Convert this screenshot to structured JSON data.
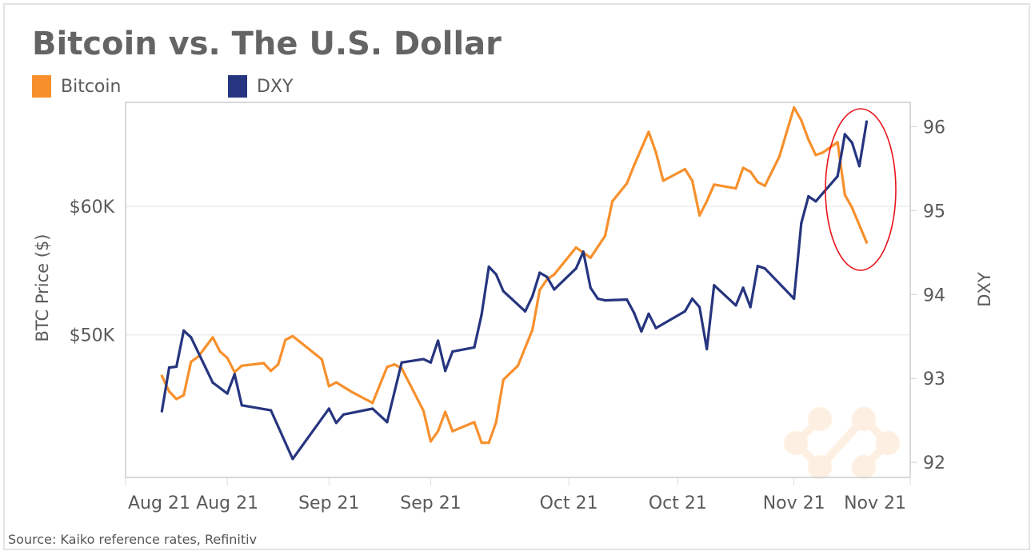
{
  "chart_data": {
    "type": "line",
    "title": "Bitcoin vs. The U.S. Dollar",
    "source": "Source: Kaiko reference rates, Refinitiv",
    "x_range": [
      "2021-08-02",
      "2021-11-18"
    ],
    "x_ticks": [
      {
        "label": "Aug 21",
        "date": "2021-08-02"
      },
      {
        "label": "Aug 21",
        "date": "2021-08-16"
      },
      {
        "label": "Sep 21",
        "date": "2021-08-30"
      },
      {
        "label": "Sep 21",
        "date": "2021-09-13"
      },
      {
        "label": "Oct 21",
        "date": "2021-10-02"
      },
      {
        "label": "Oct 21",
        "date": "2021-10-17"
      },
      {
        "label": "Nov 21",
        "date": "2021-11-02"
      },
      {
        "label": "Nov 21",
        "date": "2021-11-18"
      }
    ],
    "y_left": {
      "label": "BTC Price ($)",
      "ticks": [
        {
          "value": 50000,
          "label": "$50K"
        },
        {
          "value": 60000,
          "label": "$60K"
        }
      ],
      "range": [
        38900,
        68100
      ]
    },
    "y_right": {
      "label": "DXY",
      "ticks": [
        {
          "value": 92,
          "label": "92"
        },
        {
          "value": 93,
          "label": "93"
        },
        {
          "value": 94,
          "label": "94"
        },
        {
          "value": 95,
          "label": "95"
        },
        {
          "value": 96,
          "label": "96"
        }
      ],
      "range": [
        91.82,
        96.29
      ]
    },
    "grid": true,
    "legend_position": "top-left",
    "highlight": {
      "shape": "red oval",
      "color": "#e8141c",
      "date_range": [
        "2021-11-05",
        "2021-11-14"
      ]
    },
    "series": [
      {
        "name": "Bitcoin",
        "axis": "left",
        "color": "#f7902c",
        "points": [
          [
            "2021-08-07",
            46800
          ],
          [
            "2021-08-08",
            45600
          ],
          [
            "2021-08-09",
            45000
          ],
          [
            "2021-08-10",
            45300
          ],
          [
            "2021-08-11",
            47900
          ],
          [
            "2021-08-12",
            48300
          ],
          [
            "2021-08-14",
            49800
          ],
          [
            "2021-08-15",
            48700
          ],
          [
            "2021-08-16",
            48200
          ],
          [
            "2021-08-17",
            47100
          ],
          [
            "2021-08-18",
            47600
          ],
          [
            "2021-08-21",
            47800
          ],
          [
            "2021-08-22",
            47200
          ],
          [
            "2021-08-23",
            47700
          ],
          [
            "2021-08-24",
            49600
          ],
          [
            "2021-08-25",
            49900
          ],
          [
            "2021-08-29",
            48100
          ],
          [
            "2021-08-30",
            46000
          ],
          [
            "2021-08-31",
            46300
          ],
          [
            "2021-09-02",
            45600
          ],
          [
            "2021-09-05",
            44700
          ],
          [
            "2021-09-07",
            47500
          ],
          [
            "2021-09-08",
            47700
          ],
          [
            "2021-09-09",
            47400
          ],
          [
            "2021-09-12",
            44100
          ],
          [
            "2021-09-13",
            41700
          ],
          [
            "2021-09-14",
            42500
          ],
          [
            "2021-09-15",
            44000
          ],
          [
            "2021-09-16",
            42500
          ],
          [
            "2021-09-19",
            43200
          ],
          [
            "2021-09-20",
            41600
          ],
          [
            "2021-09-21",
            41600
          ],
          [
            "2021-09-22",
            43200
          ],
          [
            "2021-09-23",
            46500
          ],
          [
            "2021-09-25",
            47600
          ],
          [
            "2021-09-27",
            50400
          ],
          [
            "2021-09-28",
            53500
          ],
          [
            "2021-09-29",
            54300
          ],
          [
            "2021-09-30",
            54700
          ],
          [
            "2021-10-03",
            56800
          ],
          [
            "2021-10-04",
            56400
          ],
          [
            "2021-10-05",
            56000
          ],
          [
            "2021-10-07",
            57700
          ],
          [
            "2021-10-08",
            60400
          ],
          [
            "2021-10-10",
            61800
          ],
          [
            "2021-10-11",
            63200
          ],
          [
            "2021-10-13",
            65800
          ],
          [
            "2021-10-14",
            64200
          ],
          [
            "2021-10-15",
            62000
          ],
          [
            "2021-10-18",
            62900
          ],
          [
            "2021-10-19",
            62000
          ],
          [
            "2021-10-20",
            59300
          ],
          [
            "2021-10-21",
            60400
          ],
          [
            "2021-10-22",
            61700
          ],
          [
            "2021-10-25",
            61400
          ],
          [
            "2021-10-26",
            63000
          ],
          [
            "2021-10-27",
            62700
          ],
          [
            "2021-10-28",
            61900
          ],
          [
            "2021-10-29",
            61600
          ],
          [
            "2021-10-31",
            63900
          ],
          [
            "2021-11-01",
            65800
          ],
          [
            "2021-11-02",
            67700
          ],
          [
            "2021-11-03",
            66700
          ],
          [
            "2021-11-04",
            65200
          ],
          [
            "2021-11-05",
            64000
          ],
          [
            "2021-11-06",
            64200
          ],
          [
            "2021-11-08",
            65000
          ],
          [
            "2021-11-09",
            60900
          ],
          [
            "2021-11-10",
            59900
          ],
          [
            "2021-11-12",
            57200
          ]
        ]
      },
      {
        "name": "DXY",
        "axis": "right",
        "color": "#26357f",
        "points": [
          [
            "2021-08-07",
            92.61
          ],
          [
            "2021-08-08",
            93.13
          ],
          [
            "2021-08-09",
            93.14
          ],
          [
            "2021-08-10",
            93.57
          ],
          [
            "2021-08-11",
            93.49
          ],
          [
            "2021-08-14",
            92.95
          ],
          [
            "2021-08-16",
            92.82
          ],
          [
            "2021-08-17",
            93.05
          ],
          [
            "2021-08-18",
            92.68
          ],
          [
            "2021-08-22",
            92.62
          ],
          [
            "2021-08-25",
            92.04
          ],
          [
            "2021-08-30",
            92.64
          ],
          [
            "2021-08-31",
            92.47
          ],
          [
            "2021-09-01",
            92.57
          ],
          [
            "2021-09-05",
            92.64
          ],
          [
            "2021-09-07",
            92.48
          ],
          [
            "2021-09-09",
            93.19
          ],
          [
            "2021-09-12",
            93.23
          ],
          [
            "2021-09-13",
            93.19
          ],
          [
            "2021-09-14",
            93.45
          ],
          [
            "2021-09-15",
            93.09
          ],
          [
            "2021-09-16",
            93.32
          ],
          [
            "2021-09-19",
            93.37
          ],
          [
            "2021-09-20",
            93.76
          ],
          [
            "2021-09-21",
            94.33
          ],
          [
            "2021-09-22",
            94.24
          ],
          [
            "2021-09-23",
            94.04
          ],
          [
            "2021-09-26",
            93.8
          ],
          [
            "2021-09-27",
            93.98
          ],
          [
            "2021-09-28",
            94.26
          ],
          [
            "2021-09-29",
            94.21
          ],
          [
            "2021-09-30",
            94.06
          ],
          [
            "2021-10-03",
            94.31
          ],
          [
            "2021-10-04",
            94.51
          ],
          [
            "2021-10-05",
            94.08
          ],
          [
            "2021-10-06",
            93.95
          ],
          [
            "2021-10-07",
            93.93
          ],
          [
            "2021-10-10",
            93.94
          ],
          [
            "2021-10-11",
            93.78
          ],
          [
            "2021-10-12",
            93.56
          ],
          [
            "2021-10-13",
            93.77
          ],
          [
            "2021-10-14",
            93.6
          ],
          [
            "2021-10-18",
            93.8
          ],
          [
            "2021-10-19",
            93.95
          ],
          [
            "2021-10-20",
            93.85
          ],
          [
            "2021-10-21",
            93.35
          ],
          [
            "2021-10-22",
            94.11
          ],
          [
            "2021-10-25",
            93.87
          ],
          [
            "2021-10-26",
            94.08
          ],
          [
            "2021-10-27",
            93.85
          ],
          [
            "2021-10-28",
            94.34
          ],
          [
            "2021-10-29",
            94.31
          ],
          [
            "2021-11-02",
            93.95
          ],
          [
            "2021-11-03",
            94.85
          ],
          [
            "2021-11-04",
            95.17
          ],
          [
            "2021-11-05",
            95.11
          ],
          [
            "2021-11-08",
            95.41
          ],
          [
            "2021-11-09",
            95.91
          ],
          [
            "2021-11-10",
            95.81
          ],
          [
            "2021-11-11",
            95.53
          ],
          [
            "2021-11-12",
            96.06
          ]
        ]
      }
    ]
  }
}
